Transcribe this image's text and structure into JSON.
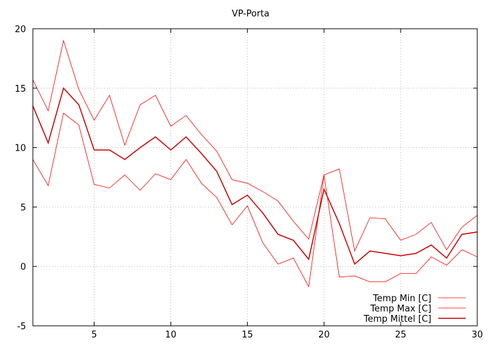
{
  "chart_data": {
    "type": "line",
    "title": "VP-Porta",
    "xlabel": "",
    "ylabel": "",
    "xlim": [
      1,
      30
    ],
    "ylim": [
      -5,
      20
    ],
    "x_ticks": [
      5,
      10,
      15,
      20,
      25,
      30
    ],
    "y_ticks": [
      -5,
      0,
      5,
      10,
      15,
      20
    ],
    "grid": true,
    "legend_position": "bottom-right",
    "x": [
      1,
      2,
      3,
      4,
      5,
      6,
      7,
      8,
      9,
      10,
      11,
      12,
      13,
      14,
      15,
      16,
      17,
      18,
      19,
      20,
      21,
      22,
      23,
      24,
      25,
      26,
      27,
      28,
      29,
      30
    ],
    "series": [
      {
        "name": "Temp Min [C]",
        "color": "#ff0000",
        "line_width": "thin",
        "values": [
          9.0,
          6.8,
          12.9,
          11.9,
          6.9,
          6.6,
          7.7,
          6.4,
          7.8,
          7.3,
          9.0,
          7.0,
          5.8,
          3.5,
          5.1,
          2.0,
          0.2,
          0.7,
          -1.7,
          7.7,
          -0.9,
          -0.8,
          -1.3,
          -1.3,
          -0.6,
          -0.6,
          0.8,
          0.1,
          1.4,
          0.8
        ]
      },
      {
        "name": "Temp Max [C]",
        "color": "#ff0000",
        "line_width": "thin",
        "values": [
          15.7,
          13.1,
          19.0,
          14.9,
          12.3,
          14.4,
          10.2,
          13.6,
          14.4,
          11.8,
          12.7,
          11.1,
          9.7,
          7.3,
          7.0,
          6.3,
          5.5,
          3.8,
          2.3,
          7.7,
          8.2,
          1.3,
          4.1,
          4.0,
          2.2,
          2.7,
          3.7,
          1.4,
          3.3,
          4.3
        ]
      },
      {
        "name": "Temp Mittel [C]",
        "color": "#cc0000",
        "line_width": "thick",
        "values": [
          13.5,
          10.4,
          15.0,
          13.6,
          9.8,
          9.8,
          9.0,
          10.0,
          10.9,
          9.8,
          10.9,
          9.5,
          8.0,
          5.2,
          6.0,
          4.5,
          2.7,
          2.2,
          0.6,
          6.5,
          3.6,
          0.2,
          1.3,
          1.1,
          0.9,
          1.1,
          1.8,
          0.7,
          2.7,
          2.9
        ]
      }
    ]
  }
}
